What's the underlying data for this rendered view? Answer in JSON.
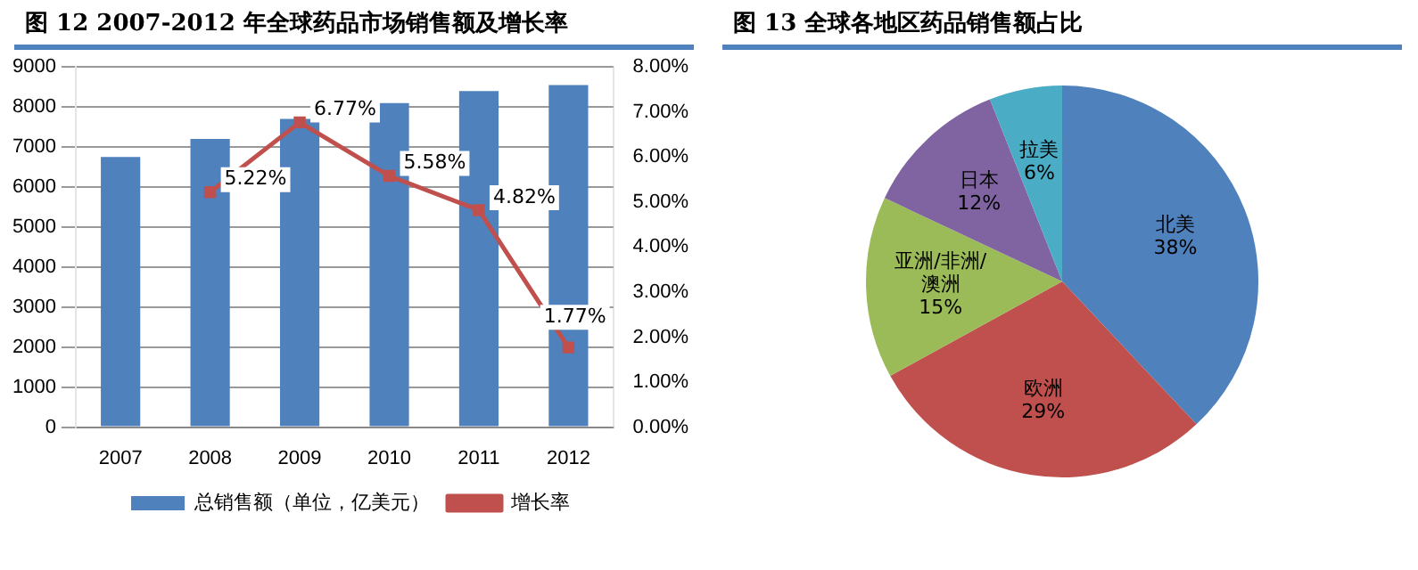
{
  "chart_data": [
    {
      "type": "bar",
      "title": "图 12 2007-2012 年全球药品市场销售额及增长率",
      "categories": [
        "2007",
        "2008",
        "2009",
        "2010",
        "2011",
        "2012"
      ],
      "series": [
        {
          "type": "bar",
          "name": "总销售额（单位，亿美元）",
          "color": "#4f81bd",
          "values": [
            6750,
            7200,
            7700,
            8100,
            8400,
            8550
          ]
        },
        {
          "type": "line",
          "name": "增长率",
          "color": "#c0504d",
          "axis": "y2",
          "marker": "square",
          "values": [
            null,
            5.22,
            6.77,
            5.58,
            4.82,
            1.77
          ],
          "value_labels": [
            null,
            "5.22%",
            "6.77%",
            "5.58%",
            "4.82%",
            "1.77%"
          ]
        }
      ],
      "ylim": [
        0,
        9000
      ],
      "yticks": [
        0,
        1000,
        2000,
        3000,
        4000,
        5000,
        6000,
        7000,
        8000,
        9000
      ],
      "y2lim": [
        0,
        8
      ],
      "y2ticks": [
        {
          "value": 0,
          "label": "0.00%"
        },
        {
          "value": 1,
          "label": "1.00%"
        },
        {
          "value": 2,
          "label": "2.00%"
        },
        {
          "value": 3,
          "label": "3.00%"
        },
        {
          "value": 4,
          "label": "4.00%"
        },
        {
          "value": 5,
          "label": "5.00%"
        },
        {
          "value": 6,
          "label": "6.00%"
        },
        {
          "value": 7,
          "label": "7.00%"
        },
        {
          "value": 8,
          "label": "8.00%"
        }
      ],
      "grid": "y",
      "legend": "bottom"
    },
    {
      "type": "pie",
      "title": "图 13 全球各地区药品销售额占比",
      "categories": [
        "北美",
        "欧洲",
        "亚洲/非洲/澳洲",
        "日本",
        "拉美"
      ],
      "values": [
        38,
        29,
        15,
        12,
        6
      ],
      "colors": [
        "#4f81bd",
        "#c0504d",
        "#9bbb59",
        "#8064a2",
        "#4bacc6"
      ],
      "value_labels": [
        "38%",
        "29%",
        "15%",
        "12%",
        "6%"
      ],
      "legend": false
    }
  ]
}
